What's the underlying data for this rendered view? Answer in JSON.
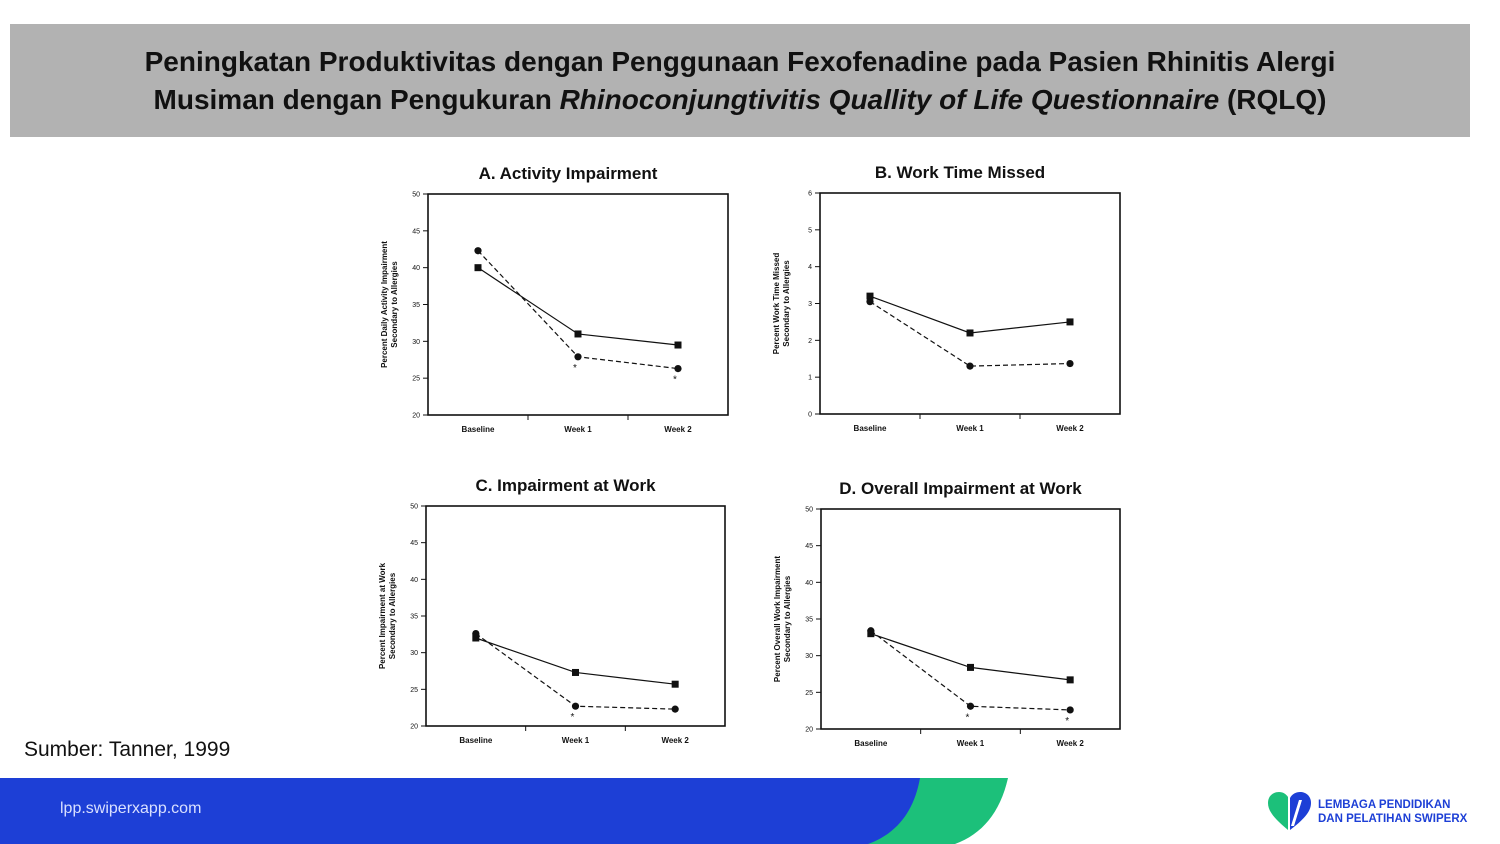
{
  "header": {
    "title_line1": "Peningkatan Produktivitas dengan Penggunaan Fexofenadine pada Pasien Rhinitis Alergi",
    "title_line2_pre": "Musiman dengan Pengukuran ",
    "title_line2_italic": "Rhinoconjungtivitis Quallity of Life Questionnaire",
    "title_line2_post": " (RQLQ)"
  },
  "source": "Sumber: Tanner, 1999",
  "footer": {
    "url": "lpp.swiperxapp.com",
    "logo_line1": "LEMBAGA PENDIDIKAN",
    "logo_line2": "DAN PELATIHAN SWIPERX"
  },
  "colors": {
    "header_bg": "#b2b2b2",
    "footer_blue": "#1d3fd6",
    "footer_green": "#1cc07a"
  },
  "chart_data": [
    {
      "type": "line",
      "title": "A. Activity Impairment",
      "ylabel": [
        "Percent Daily Activity Impairment",
        "Secondary to Allergies"
      ],
      "categories": [
        "Baseline",
        "Week 1",
        "Week 2"
      ],
      "ylim": [
        20,
        50
      ],
      "yticks": [
        20,
        25,
        30,
        35,
        40,
        45,
        50
      ],
      "series": [
        {
          "marker": "square",
          "dash": false,
          "values": [
            40.0,
            31.0,
            29.5
          ]
        },
        {
          "marker": "circle",
          "dash": true,
          "values": [
            42.3,
            27.9,
            26.3
          ]
        }
      ],
      "annotations": [
        {
          "index": 1,
          "text": "*"
        },
        {
          "index": 2,
          "text": "*"
        }
      ]
    },
    {
      "type": "line",
      "title": "B. Work Time Missed",
      "ylabel": [
        "Percent Work Time Missed",
        "Secondary to Allergies"
      ],
      "categories": [
        "Baseline",
        "Week 1",
        "Week 2"
      ],
      "ylim": [
        0,
        6
      ],
      "yticks": [
        0,
        1,
        2,
        3,
        4,
        5,
        6
      ],
      "series": [
        {
          "marker": "square",
          "dash": false,
          "values": [
            3.2,
            2.2,
            2.5
          ]
        },
        {
          "marker": "circle",
          "dash": true,
          "values": [
            3.05,
            1.3,
            1.37
          ]
        }
      ],
      "annotations": []
    },
    {
      "type": "line",
      "title": "C. Impairment at Work",
      "ylabel": [
        "Percent Impairment at Work",
        "Secondary to Allergies"
      ],
      "categories": [
        "Baseline",
        "Week 1",
        "Week 2"
      ],
      "ylim": [
        20,
        50
      ],
      "yticks": [
        20,
        25,
        30,
        35,
        40,
        45,
        50
      ],
      "series": [
        {
          "marker": "square",
          "dash": false,
          "values": [
            32.0,
            27.3,
            25.7
          ]
        },
        {
          "marker": "circle",
          "dash": true,
          "values": [
            32.6,
            22.7,
            22.3
          ]
        }
      ],
      "annotations": [
        {
          "index": 1,
          "text": "*"
        }
      ]
    },
    {
      "type": "line",
      "title": "D. Overall Impairment at Work",
      "ylabel": [
        "Percent Overall Work Impairment",
        "Secondary to Allergies"
      ],
      "categories": [
        "Baseline",
        "Week 1",
        "Week 2"
      ],
      "ylim": [
        20,
        50
      ],
      "yticks": [
        20,
        25,
        30,
        35,
        40,
        45,
        50
      ],
      "series": [
        {
          "marker": "square",
          "dash": false,
          "values": [
            33.0,
            28.4,
            26.7
          ]
        },
        {
          "marker": "circle",
          "dash": true,
          "values": [
            33.4,
            23.1,
            22.6
          ]
        }
      ],
      "annotations": [
        {
          "index": 1,
          "text": "*"
        },
        {
          "index": 2,
          "text": "*"
        }
      ]
    }
  ]
}
